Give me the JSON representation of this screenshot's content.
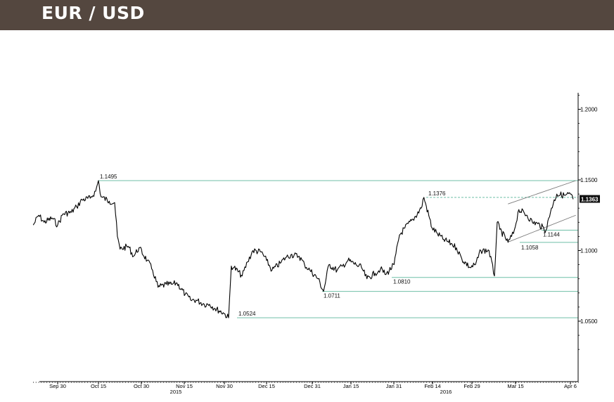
{
  "title": "EUR / USD",
  "chart_data": {
    "type": "line",
    "title": "EUR / USD",
    "xlabel": "",
    "ylabel": "",
    "ylim": [
      1.02,
      1.21
    ],
    "grid": false,
    "y_axis_side": "right",
    "y_ticks": [
      "1.2000",
      "1.1500",
      "1.1000",
      "1.0500"
    ],
    "x_ticks": [
      "Sep 30",
      "Oct 15",
      "Oct 30",
      "Nov 15",
      "Nov 30",
      "Dec 15",
      "Dec 31",
      "Jan 15",
      "Jan 31",
      "Feb 14",
      "Feb 29",
      "Mar 15",
      "Apr 6"
    ],
    "year_labels": [
      "2015",
      "2016"
    ],
    "series": [
      {
        "x": [
          "2015-09-21",
          "2015-09-23",
          "2015-09-25",
          "2015-09-28",
          "2015-09-30",
          "2015-10-02",
          "2015-10-05",
          "2015-10-07",
          "2015-10-09",
          "2015-10-12",
          "2015-10-14",
          "2015-10-15",
          "2015-10-16",
          "2015-10-19",
          "2015-10-21",
          "2015-10-22",
          "2015-10-23",
          "2015-10-26",
          "2015-10-28",
          "2015-10-30",
          "2015-11-02",
          "2015-11-04",
          "2015-11-06",
          "2015-11-09",
          "2015-11-11",
          "2015-11-13",
          "2015-11-16",
          "2015-11-18",
          "2015-11-20",
          "2015-11-23",
          "2015-11-25",
          "2015-11-27",
          "2015-11-30",
          "2015-12-02",
          "2015-12-03",
          "2015-12-04",
          "2015-12-07",
          "2015-12-09",
          "2015-12-11",
          "2015-12-14",
          "2015-12-16",
          "2015-12-18",
          "2015-12-21",
          "2015-12-23",
          "2015-12-25",
          "2015-12-28",
          "2015-12-30",
          "2016-01-01",
          "2016-01-04",
          "2016-01-06",
          "2016-01-08",
          "2016-01-11",
          "2016-01-13",
          "2016-01-15",
          "2016-01-18",
          "2016-01-20",
          "2016-01-22",
          "2016-01-25",
          "2016-01-27",
          "2016-01-29",
          "2016-02-01",
          "2016-02-03",
          "2016-02-05",
          "2016-02-08",
          "2016-02-11",
          "2016-02-12",
          "2016-02-15",
          "2016-02-17",
          "2016-02-19",
          "2016-02-22",
          "2016-02-24",
          "2016-02-26",
          "2016-02-29",
          "2016-03-02",
          "2016-03-04",
          "2016-03-07",
          "2016-03-09",
          "2016-03-10",
          "2016-03-11",
          "2016-03-14",
          "2016-03-16",
          "2016-03-18",
          "2016-03-21",
          "2016-03-23",
          "2016-03-25",
          "2016-03-28",
          "2016-03-30",
          "2016-04-01",
          "2016-04-04",
          "2016-04-06",
          "2016-04-07"
        ],
        "values": [
          1.118,
          1.125,
          1.12,
          1.123,
          1.118,
          1.126,
          1.127,
          1.131,
          1.136,
          1.137,
          1.142,
          1.1495,
          1.138,
          1.135,
          1.134,
          1.11,
          1.101,
          1.103,
          1.096,
          1.102,
          1.093,
          1.086,
          1.074,
          1.076,
          1.076,
          1.077,
          1.069,
          1.065,
          1.065,
          1.062,
          1.062,
          1.059,
          1.056,
          1.0524,
          1.089,
          1.088,
          1.082,
          1.092,
          1.1,
          1.099,
          1.093,
          1.086,
          1.091,
          1.095,
          1.097,
          1.096,
          1.09,
          1.086,
          1.08,
          1.0711,
          1.09,
          1.086,
          1.089,
          1.093,
          1.09,
          1.088,
          1.08,
          1.084,
          1.087,
          1.083,
          1.09,
          1.111,
          1.116,
          1.122,
          1.13,
          1.1376,
          1.116,
          1.112,
          1.108,
          1.105,
          1.102,
          1.094,
          1.088,
          1.09,
          1.1,
          1.1,
          1.082,
          1.12,
          1.115,
          1.1058,
          1.112,
          1.129,
          1.125,
          1.12,
          1.119,
          1.1144,
          1.13,
          1.14,
          1.139,
          1.14,
          1.1363
        ]
      }
    ],
    "horizontal_levels": [
      {
        "value": 1.1495,
        "label": "1.1495"
      },
      {
        "value": 1.1376,
        "label": "1.1376",
        "style": "dashed"
      },
      {
        "value": 1.1144,
        "label": "1.1144"
      },
      {
        "value": 1.1058,
        "label": "1.1058"
      },
      {
        "value": 1.081,
        "label": "1.0810"
      },
      {
        "value": 1.0711,
        "label": "1.0711"
      },
      {
        "value": 1.0524,
        "label": "1.0524"
      }
    ],
    "channel_lines": [
      {
        "from": {
          "x": "2016-03-14",
          "y": 1.133
        },
        "to": {
          "x": "2016-04-08",
          "y": 1.1495
        }
      },
      {
        "from": {
          "x": "2016-03-14",
          "y": 1.106
        },
        "to": {
          "x": "2016-04-08",
          "y": 1.125
        }
      }
    ],
    "last_value": "1.1363",
    "colors": {
      "line": "#000000",
      "levels": "#6fbfa7",
      "channel": "#7a7a7a",
      "last_value_bg": "#111111",
      "title_bar": "#54473f"
    }
  }
}
